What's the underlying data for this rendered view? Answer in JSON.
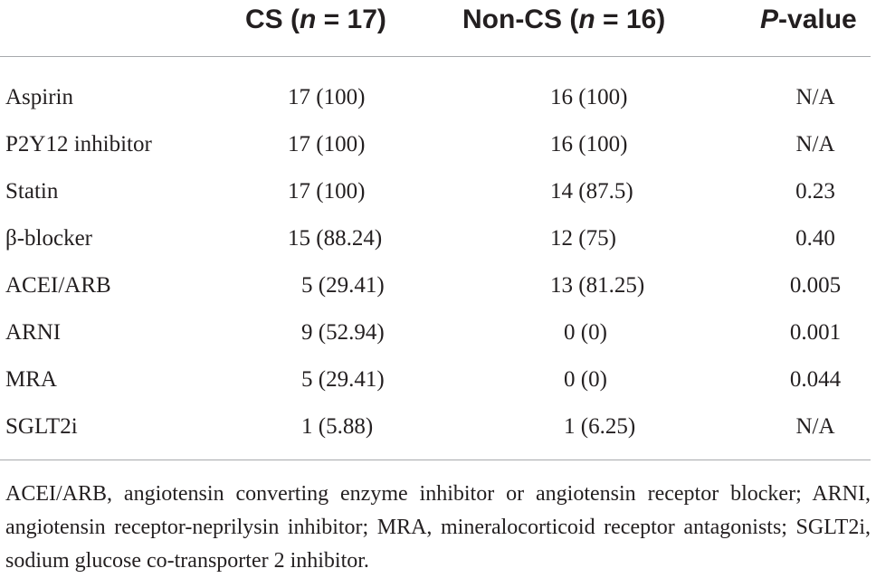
{
  "table": {
    "headers": {
      "cs": {
        "label": "CS (",
        "n_italic": "n",
        "rest": " = 17)"
      },
      "noncs": {
        "label": "Non-CS (",
        "n_italic": "n",
        "rest": " = 16)"
      },
      "pvalue": {
        "p_italic": "P",
        "rest": "-value"
      }
    },
    "rows": [
      {
        "label": "Aspirin",
        "cs": "17 (100)",
        "noncs": "16 (100)",
        "p": "N/A",
        "cs_pad": false,
        "noncs_pad": false
      },
      {
        "label": "P2Y12 inhibitor",
        "cs": "17 (100)",
        "noncs": "16 (100)",
        "p": "N/A",
        "cs_pad": false,
        "noncs_pad": false
      },
      {
        "label": "Statin",
        "cs": "17 (100)",
        "noncs": "14 (87.5)",
        "p": "0.23",
        "cs_pad": false,
        "noncs_pad": false
      },
      {
        "label": "β-blocker",
        "cs": "15 (88.24)",
        "noncs": "12 (75)",
        "p": "0.40",
        "cs_pad": false,
        "noncs_pad": false
      },
      {
        "label": "ACEI/ARB",
        "cs": "5 (29.41)",
        "noncs": "13 (81.25)",
        "p": "0.005",
        "cs_pad": true,
        "noncs_pad": false
      },
      {
        "label": "ARNI",
        "cs": "9 (52.94)",
        "noncs": "0 (0)",
        "p": "0.001",
        "cs_pad": true,
        "noncs_pad": true
      },
      {
        "label": "MRA",
        "cs": "5 (29.41)",
        "noncs": "0 (0)",
        "p": "0.044",
        "cs_pad": true,
        "noncs_pad": true
      },
      {
        "label": "SGLT2i",
        "cs": "1 (5.88)",
        "noncs": "1 (6.25)",
        "p": "N/A",
        "cs_pad": true,
        "noncs_pad": true
      }
    ],
    "footnote": "ACEI/ARB, angiotensin converting enzyme inhibitor or angiotensin receptor blocker; ARNI, angiotensin receptor-neprilysin inhibitor; MRA, mineralocorticoid receptor antagonists; SGLT2i, sodium glucose co-transporter 2 inhibitor."
  }
}
